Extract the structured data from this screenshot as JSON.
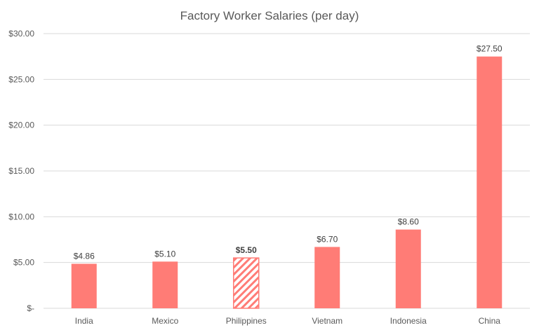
{
  "chart_data": {
    "type": "bar",
    "title": "Factory Worker Salaries (per day)",
    "xlabel": "",
    "ylabel": "",
    "categories": [
      "India",
      "Mexico",
      "Philippines",
      "Vietnam",
      "Indonesia",
      "China"
    ],
    "values": [
      4.86,
      5.1,
      5.5,
      6.7,
      8.6,
      27.5
    ],
    "data_labels": [
      "$4.86",
      "$5.10",
      "$5.50",
      "$6.70",
      "$8.60",
      "$27.50"
    ],
    "highlighted_category": "Philippines",
    "highlight_style": "diagonal-hatch",
    "ylim": [
      0,
      30
    ],
    "y_ticks": [
      0,
      5,
      10,
      15,
      20,
      25,
      30
    ],
    "y_tick_labels": [
      "$-",
      "$5.00",
      "$10.00",
      "$15.00",
      "$20.00",
      "$25.00",
      "$30.00"
    ],
    "grid": true,
    "legend": "none",
    "colors": {
      "bar": "#ff7c76",
      "grid": "#d9d9d9",
      "text": "#595959"
    }
  }
}
